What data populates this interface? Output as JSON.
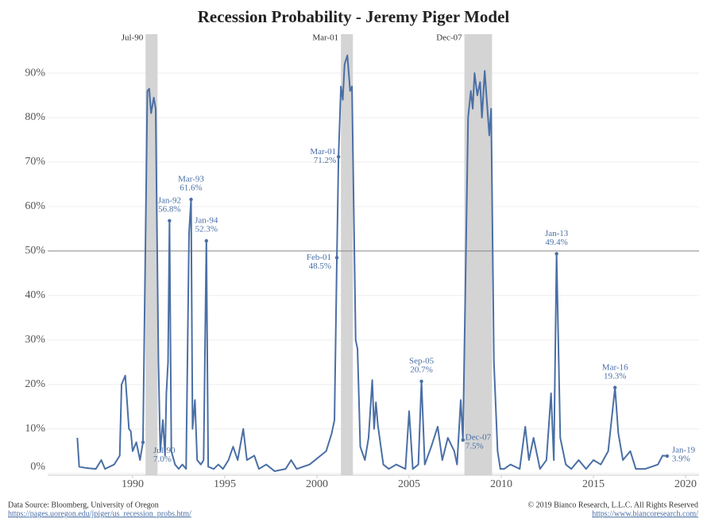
{
  "chart_data": {
    "type": "line",
    "title": "Recession Probability - Jeremy Piger Model",
    "x": [
      1987.0,
      1987.1,
      1987.5,
      1988.0,
      1988.3,
      1988.5,
      1989.0,
      1989.3,
      1989.4,
      1989.6,
      1989.8,
      1989.9,
      1990.0,
      1990.2,
      1990.4,
      1990.56,
      1990.8,
      1990.9,
      1991.0,
      1991.15,
      1991.25,
      1991.4,
      1991.5,
      1991.64,
      1991.76,
      1991.83,
      1991.92,
      1992.0,
      1992.1,
      1992.3,
      1992.5,
      1992.7,
      1992.9,
      1993.06,
      1993.17,
      1993.25,
      1993.38,
      1993.5,
      1993.7,
      1993.85,
      1994.0,
      1994.1,
      1994.4,
      1994.65,
      1994.9,
      1995.2,
      1995.45,
      1995.7,
      1996.0,
      1996.2,
      1996.6,
      1996.85,
      1997.25,
      1997.7,
      1998.3,
      1998.6,
      1998.9,
      1999.6,
      2000.5,
      2000.8,
      2000.95,
      2001.08,
      2001.17,
      2001.3,
      2001.4,
      2001.5,
      2001.65,
      2001.8,
      2001.9,
      2002.1,
      2002.2,
      2002.35,
      2002.6,
      2002.8,
      2003.0,
      2003.1,
      2003.2,
      2003.3,
      2003.6,
      2003.9,
      2004.3,
      2004.8,
      2005.0,
      2005.2,
      2005.5,
      2005.67,
      2005.85,
      2006.2,
      2006.55,
      2006.8,
      2007.1,
      2007.45,
      2007.6,
      2007.8,
      2007.92,
      2008.2,
      2008.35,
      2008.45,
      2008.55,
      2008.7,
      2008.85,
      2008.95,
      2009.1,
      2009.35,
      2009.45,
      2009.6,
      2009.8,
      2009.95,
      2010.15,
      2010.5,
      2011.0,
      2011.3,
      2011.5,
      2011.75,
      2012.1,
      2012.45,
      2012.7,
      2012.85,
      2013.0,
      2013.2,
      2013.5,
      2013.8,
      2014.2,
      2014.6,
      2015.0,
      2015.4,
      2015.8,
      2016.17,
      2016.35,
      2016.6,
      2017.0,
      2017.3,
      2017.8,
      2018.5,
      2018.75,
      2019.0
    ],
    "series": [
      {
        "color": "#4a6fa5",
        "values": [
          8,
          1.5,
          1.2,
          1,
          3,
          1,
          2,
          4,
          20,
          22,
          10,
          9.5,
          5,
          7,
          3,
          7.0,
          86,
          86.5,
          81,
          84.5,
          82,
          25,
          5,
          12,
          4,
          18,
          25,
          56.8,
          5,
          2,
          1,
          2,
          1,
          54,
          61.6,
          10,
          16.5,
          3,
          2,
          3,
          52.3,
          1.5,
          1,
          2,
          1,
          3,
          6,
          3,
          10,
          3,
          4,
          1,
          2,
          0.5,
          1,
          3,
          1,
          2,
          5,
          9,
          12,
          48.5,
          71.2,
          87,
          84,
          92,
          94,
          86,
          87,
          30,
          28,
          6,
          3,
          8,
          21,
          10,
          16,
          11,
          2,
          1,
          2,
          1,
          14,
          1,
          2,
          20.7,
          2,
          6,
          10.5,
          3,
          8,
          5,
          2,
          16.5,
          7.5,
          80,
          86,
          82,
          90,
          85,
          88,
          80,
          90.5,
          76,
          82,
          25,
          5,
          1,
          1,
          2,
          1,
          10.5,
          3,
          8,
          1,
          3,
          18,
          3,
          49.4,
          8,
          2,
          1,
          3,
          1,
          3,
          2,
          5,
          19.3,
          9,
          3,
          5,
          1,
          1,
          2,
          4,
          3.9
        ]
      }
    ],
    "xlim": [
      1985.39,
      2020.73
    ],
    "ylim": [
      -0.4,
      99.3
    ],
    "xticks": [
      1990,
      1995,
      2000,
      2005,
      2010,
      2015,
      2020
    ],
    "yticks": [
      {
        "value": 0,
        "label": "0%"
      },
      {
        "value": 10,
        "label": "10%"
      },
      {
        "value": 20,
        "label": "20%"
      },
      {
        "value": 30,
        "label": "30%"
      },
      {
        "value": 40,
        "label": "40%"
      },
      {
        "value": 50,
        "label": "50%"
      },
      {
        "value": 60,
        "label": "60%"
      },
      {
        "value": 70,
        "label": "70%"
      },
      {
        "value": 80,
        "label": "80%"
      },
      {
        "value": 90,
        "label": "90%"
      }
    ],
    "grid": true,
    "reference_line": 50,
    "recessions": [
      {
        "label": "Jul-90",
        "start": 1990.7,
        "end": 1991.35
      },
      {
        "label": "Mar-01",
        "start": 2001.3,
        "end": 2001.95
      },
      {
        "label": "Dec-07",
        "start": 2008.0,
        "end": 2009.5
      }
    ],
    "annotations": [
      {
        "label": "Jul-90",
        "x": 1990.56,
        "value": 7.0,
        "value_label": "7.0%"
      },
      {
        "label": "Jan-92",
        "x": 1992.0,
        "value": 56.8,
        "value_label": "56.8%"
      },
      {
        "label": "Mar-93",
        "x": 1993.17,
        "value": 61.6,
        "value_label": "61.6%"
      },
      {
        "label": "Jan-94",
        "x": 1994.0,
        "value": 52.3,
        "value_label": "52.3%"
      },
      {
        "label": "Feb-01",
        "x": 2001.08,
        "value": 48.5,
        "value_label": "48.5%"
      },
      {
        "label": "Mar-01",
        "x": 2001.17,
        "value": 71.2,
        "value_label": "71.2%"
      },
      {
        "label": "Sep-05",
        "x": 2005.67,
        "value": 20.7,
        "value_label": "20.7%"
      },
      {
        "label": "Dec-07",
        "x": 2007.92,
        "value": 7.5,
        "value_label": "7.5%"
      },
      {
        "label": "Jan-13",
        "x": 2013.0,
        "value": 49.4,
        "value_label": "49.4%"
      },
      {
        "label": "Mar-16",
        "x": 2016.17,
        "value": 19.3,
        "value_label": "19.3%"
      },
      {
        "label": "Jan-19",
        "x": 2019.0,
        "value": 3.9,
        "value_label": "3.9%"
      }
    ],
    "source": "Data Source: Bloomberg, University of Oregon",
    "source_url": "https://pages.uoregon.edu/jpiger/us_recession_probs.htm/",
    "copyright": "© 2019 Bianco Research, L.L.C. All Rights Reserved",
    "site_url": "https://www.biancoresearch.com/"
  }
}
